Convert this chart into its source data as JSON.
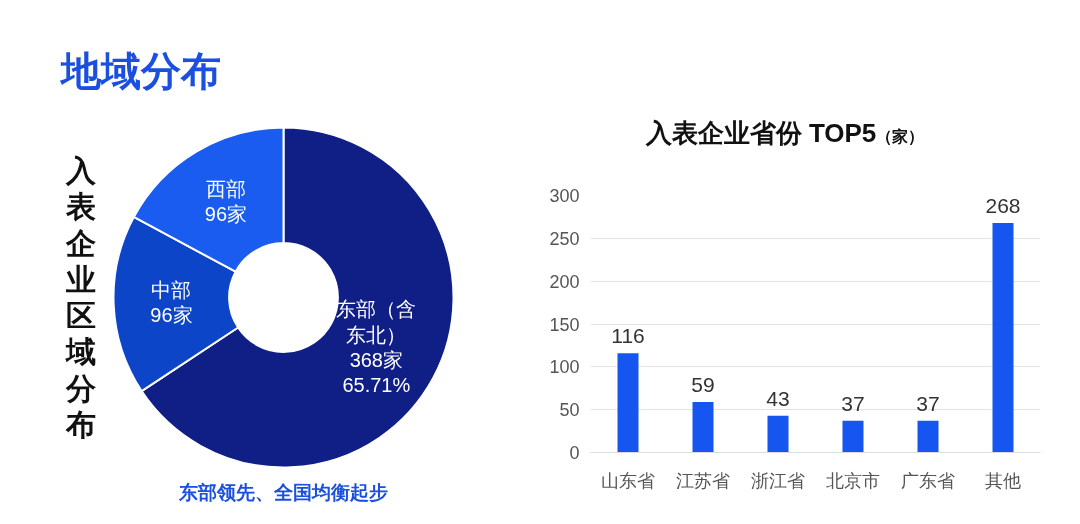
{
  "chart_data": [
    {
      "type": "donut",
      "title": "地域分布",
      "ylabel": "入表企业区域分布",
      "categories": [
        "东部（含东北）",
        "中部",
        "西部"
      ],
      "values": [
        368,
        96,
        96
      ],
      "colors": [
        "#0f1f86",
        "#0d45c8",
        "#1a5cf0"
      ],
      "value_labels": [
        "368家\n65.71%",
        "96家",
        "96家"
      ],
      "annotations": [
        "东部领先、全国均衡起步"
      ]
    },
    {
      "type": "bar",
      "title": "入表企业省份 TOP5",
      "subtitle": "（家）",
      "categories": [
        "山东省",
        "江苏省",
        "浙江省",
        "北京市",
        "广东省",
        "其他"
      ],
      "values": [
        116,
        59,
        43,
        37,
        37,
        268
      ],
      "color": "#1655f0",
      "ylim": [
        0,
        300
      ],
      "yticks": [
        0,
        50,
        100,
        150,
        200,
        250,
        300
      ],
      "grid": "y",
      "data_labels": true
    }
  ]
}
